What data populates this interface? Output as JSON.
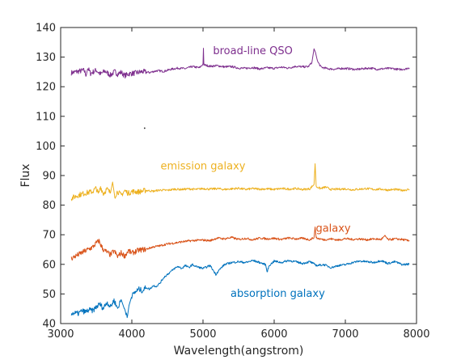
{
  "chart_data": {
    "type": "line",
    "xlabel": "Wavelength(angstrom)",
    "ylabel": "Flux",
    "xlim": [
      3000,
      8000
    ],
    "ylim": [
      40,
      140
    ],
    "x_ticks": [
      3000,
      4000,
      5000,
      6000,
      7000,
      8000
    ],
    "y_ticks": [
      40,
      50,
      60,
      70,
      80,
      90,
      100,
      110,
      120,
      130,
      140
    ],
    "grid": false,
    "series": [
      {
        "name": "broad-line QSO",
        "color": "#7E2F8E",
        "label_at": [
          5700,
          131
        ],
        "points": [
          [
            3150,
            124.7
          ],
          [
            3250,
            125.2
          ],
          [
            3330,
            125.5
          ],
          [
            3360,
            123.8
          ],
          [
            3380,
            126.4
          ],
          [
            3420,
            124.5
          ],
          [
            3500,
            125.6
          ],
          [
            3560,
            124.2
          ],
          [
            3620,
            125.3
          ],
          [
            3700,
            123.9
          ],
          [
            3760,
            125.1
          ],
          [
            3800,
            124.3
          ],
          [
            3850,
            124.9
          ],
          [
            3900,
            123.7
          ],
          [
            3960,
            124.4
          ],
          [
            4050,
            124.6
          ],
          [
            4150,
            125.1
          ],
          [
            4250,
            124.8
          ],
          [
            4350,
            125.4
          ],
          [
            4450,
            125.2
          ],
          [
            4550,
            125.9
          ],
          [
            4650,
            126.3
          ],
          [
            4750,
            126.1
          ],
          [
            4850,
            126.8
          ],
          [
            4950,
            126.4
          ],
          [
            5000,
            127.6
          ],
          [
            5006,
            133.0
          ],
          [
            5012,
            127.4
          ],
          [
            5100,
            126.9
          ],
          [
            5200,
            127.1
          ],
          [
            5300,
            126.7
          ],
          [
            5400,
            126.8
          ],
          [
            5500,
            126.3
          ],
          [
            5600,
            126.2
          ],
          [
            5700,
            126.5
          ],
          [
            5800,
            126.0
          ],
          [
            5900,
            126.4
          ],
          [
            6000,
            126.2
          ],
          [
            6100,
            126.6
          ],
          [
            6200,
            126.3
          ],
          [
            6300,
            126.9
          ],
          [
            6400,
            126.7
          ],
          [
            6480,
            126.8
          ],
          [
            6530,
            128.2
          ],
          [
            6560,
            132.8
          ],
          [
            6580,
            131.6
          ],
          [
            6610,
            128.5
          ],
          [
            6660,
            126.6
          ],
          [
            6750,
            126.1
          ],
          [
            6850,
            125.9
          ],
          [
            6950,
            126.2
          ],
          [
            7050,
            126.1
          ],
          [
            7150,
            125.8
          ],
          [
            7250,
            126.1
          ],
          [
            7350,
            126.3
          ],
          [
            7450,
            125.9
          ],
          [
            7550,
            126.1
          ],
          [
            7650,
            126.2
          ],
          [
            7750,
            125.8
          ],
          [
            7850,
            126.0
          ],
          [
            7900,
            126.4
          ]
        ]
      },
      {
        "name": "emission galaxy",
        "color": "#EDB120",
        "label_at": [
          5000,
          92
        ],
        "points": [
          [
            3150,
            82.3
          ],
          [
            3250,
            83.4
          ],
          [
            3350,
            84.1
          ],
          [
            3450,
            84.6
          ],
          [
            3500,
            85.8
          ],
          [
            3530,
            83.6
          ],
          [
            3560,
            86.2
          ],
          [
            3600,
            83.9
          ],
          [
            3650,
            85.4
          ],
          [
            3700,
            84.1
          ],
          [
            3730,
            87.8
          ],
          [
            3760,
            82.9
          ],
          [
            3800,
            84.7
          ],
          [
            3850,
            83.3
          ],
          [
            3900,
            84.9
          ],
          [
            3950,
            84.0
          ],
          [
            4000,
            84.6
          ],
          [
            4100,
            84.5
          ],
          [
            4200,
            85.0
          ],
          [
            4300,
            84.7
          ],
          [
            4400,
            85.1
          ],
          [
            4500,
            85.0
          ],
          [
            4600,
            85.4
          ],
          [
            4700,
            85.3
          ],
          [
            4800,
            85.5
          ],
          [
            4900,
            85.3
          ],
          [
            5000,
            85.6
          ],
          [
            5100,
            85.4
          ],
          [
            5200,
            85.6
          ],
          [
            5300,
            85.3
          ],
          [
            5400,
            85.5
          ],
          [
            5500,
            85.7
          ],
          [
            5600,
            85.3
          ],
          [
            5700,
            85.6
          ],
          [
            5800,
            85.4
          ],
          [
            5900,
            85.5
          ],
          [
            6000,
            85.3
          ],
          [
            6100,
            85.6
          ],
          [
            6200,
            85.4
          ],
          [
            6300,
            85.6
          ],
          [
            6400,
            85.3
          ],
          [
            6500,
            85.5
          ],
          [
            6560,
            87.0
          ],
          [
            6575,
            94.0
          ],
          [
            6590,
            86.3
          ],
          [
            6650,
            85.6
          ],
          [
            6720,
            86.1
          ],
          [
            6800,
            85.3
          ],
          [
            6900,
            85.4
          ],
          [
            7000,
            85.5
          ],
          [
            7100,
            85.2
          ],
          [
            7200,
            85.4
          ],
          [
            7300,
            85.6
          ],
          [
            7400,
            85.3
          ],
          [
            7500,
            85.4
          ],
          [
            7600,
            85.1
          ],
          [
            7700,
            85.3
          ],
          [
            7800,
            85.0
          ],
          [
            7900,
            85.3
          ]
        ]
      },
      {
        "name": "galaxy",
        "color": "#D95319",
        "label_at": [
          6830,
          71
        ],
        "points": [
          [
            3150,
            62.0
          ],
          [
            3250,
            63.3
          ],
          [
            3350,
            64.6
          ],
          [
            3450,
            65.8
          ],
          [
            3500,
            67.2
          ],
          [
            3540,
            67.9
          ],
          [
            3570,
            66.2
          ],
          [
            3600,
            65.0
          ],
          [
            3650,
            64.1
          ],
          [
            3700,
            63.2
          ],
          [
            3750,
            64.6
          ],
          [
            3800,
            62.6
          ],
          [
            3850,
            63.9
          ],
          [
            3900,
            62.8
          ],
          [
            3950,
            64.6
          ],
          [
            4000,
            63.8
          ],
          [
            4100,
            64.8
          ],
          [
            4200,
            65.1
          ],
          [
            4300,
            65.9
          ],
          [
            4400,
            66.3
          ],
          [
            4500,
            66.9
          ],
          [
            4600,
            67.2
          ],
          [
            4700,
            67.6
          ],
          [
            4800,
            67.9
          ],
          [
            4900,
            68.1
          ],
          [
            5000,
            68.2
          ],
          [
            5100,
            68.0
          ],
          [
            5200,
            68.9
          ],
          [
            5300,
            68.6
          ],
          [
            5400,
            69.1
          ],
          [
            5500,
            68.4
          ],
          [
            5600,
            68.8
          ],
          [
            5700,
            68.3
          ],
          [
            5800,
            68.9
          ],
          [
            5900,
            68.6
          ],
          [
            6000,
            68.8
          ],
          [
            6100,
            68.4
          ],
          [
            6200,
            68.9
          ],
          [
            6300,
            68.6
          ],
          [
            6400,
            68.8
          ],
          [
            6500,
            68.3
          ],
          [
            6560,
            69.1
          ],
          [
            6575,
            72.6
          ],
          [
            6590,
            68.9
          ],
          [
            6700,
            68.3
          ],
          [
            6800,
            68.6
          ],
          [
            6900,
            68.2
          ],
          [
            7000,
            68.7
          ],
          [
            7100,
            68.4
          ],
          [
            7200,
            68.6
          ],
          [
            7300,
            68.3
          ],
          [
            7400,
            68.6
          ],
          [
            7500,
            68.4
          ],
          [
            7560,
            69.6
          ],
          [
            7600,
            68.3
          ],
          [
            7700,
            68.6
          ],
          [
            7800,
            68.4
          ],
          [
            7900,
            67.9
          ]
        ]
      },
      {
        "name": "absorption galaxy",
        "color": "#0072BD",
        "label_at": [
          6050,
          49
        ],
        "points": [
          [
            3150,
            43.5
          ],
          [
            3250,
            43.4
          ],
          [
            3300,
            44.3
          ],
          [
            3350,
            43.9
          ],
          [
            3400,
            44.6
          ],
          [
            3450,
            44.3
          ],
          [
            3500,
            45.6
          ],
          [
            3550,
            46.6
          ],
          [
            3600,
            45.1
          ],
          [
            3650,
            47.3
          ],
          [
            3700,
            45.6
          ],
          [
            3750,
            47.9
          ],
          [
            3800,
            45.1
          ],
          [
            3850,
            48.1
          ],
          [
            3900,
            44.6
          ],
          [
            3940,
            42.6
          ],
          [
            3960,
            46.1
          ],
          [
            4000,
            49.3
          ],
          [
            4050,
            50.7
          ],
          [
            4100,
            51.6
          ],
          [
            4150,
            51.1
          ],
          [
            4200,
            52.2
          ],
          [
            4250,
            51.6
          ],
          [
            4300,
            52.8
          ],
          [
            4350,
            52.6
          ],
          [
            4400,
            53.8
          ],
          [
            4450,
            55.6
          ],
          [
            4500,
            56.6
          ],
          [
            4550,
            57.6
          ],
          [
            4600,
            58.6
          ],
          [
            4650,
            59.3
          ],
          [
            4700,
            58.6
          ],
          [
            4750,
            59.6
          ],
          [
            4800,
            58.9
          ],
          [
            4850,
            59.9
          ],
          [
            4900,
            59.3
          ],
          [
            5000,
            58.6
          ],
          [
            5100,
            59.6
          ],
          [
            5180,
            56.6
          ],
          [
            5220,
            57.9
          ],
          [
            5300,
            59.9
          ],
          [
            5400,
            60.6
          ],
          [
            5500,
            60.9
          ],
          [
            5600,
            60.6
          ],
          [
            5700,
            61.3
          ],
          [
            5800,
            60.6
          ],
          [
            5880,
            59.9
          ],
          [
            5900,
            57.4
          ],
          [
            5930,
            59.6
          ],
          [
            6000,
            61.1
          ],
          [
            6100,
            60.6
          ],
          [
            6200,
            61.3
          ],
          [
            6300,
            60.9
          ],
          [
            6400,
            60.3
          ],
          [
            6500,
            60.9
          ],
          [
            6600,
            59.6
          ],
          [
            6700,
            59.9
          ],
          [
            6800,
            58.9
          ],
          [
            6900,
            59.6
          ],
          [
            7000,
            59.9
          ],
          [
            7100,
            60.6
          ],
          [
            7200,
            61.1
          ],
          [
            7300,
            60.9
          ],
          [
            7400,
            60.6
          ],
          [
            7500,
            61.3
          ],
          [
            7600,
            60.3
          ],
          [
            7700,
            60.9
          ],
          [
            7800,
            59.9
          ],
          [
            7900,
            60.1
          ]
        ]
      }
    ]
  }
}
